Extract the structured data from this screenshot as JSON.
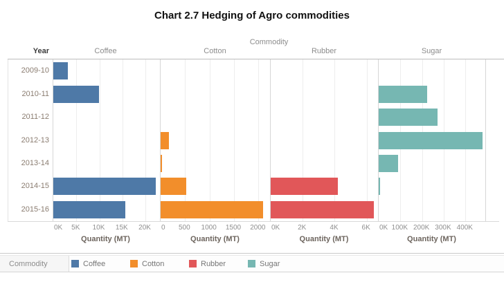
{
  "chart_data": {
    "type": "bar",
    "orientation": "horizontal",
    "title": "Chart 2.7 Hedging of Agro commodities",
    "column_dimension": "Commodity",
    "row_dimension": "Year",
    "xlabel": "Quantity (MT)",
    "years": [
      "2009-10",
      "2010-11",
      "2011-12",
      "2012-13",
      "2013-14",
      "2014-15",
      "2015-16"
    ],
    "grid": true,
    "panels": [
      {
        "name": "Coffee",
        "color": "#4e79a7",
        "axis_max": 23000,
        "ticks": [
          {
            "label": "0K",
            "value": 0
          },
          {
            "label": "5K",
            "value": 5000
          },
          {
            "label": "10K",
            "value": 10000
          },
          {
            "label": "15K",
            "value": 15000
          },
          {
            "label": "20K",
            "value": 20000
          }
        ],
        "values": [
          3200,
          9900,
          0,
          0,
          0,
          22300,
          15700
        ]
      },
      {
        "name": "Cotton",
        "color": "#f28e2b",
        "axis_max": 2250,
        "ticks": [
          {
            "label": "0",
            "value": 0
          },
          {
            "label": "500",
            "value": 500
          },
          {
            "label": "1000",
            "value": 1000
          },
          {
            "label": "1500",
            "value": 1500
          },
          {
            "label": "2000",
            "value": 2000
          }
        ],
        "values": [
          0,
          0,
          0,
          175,
          30,
          520,
          2100
        ]
      },
      {
        "name": "Rubber",
        "color": "#e15759",
        "axis_max": 6750,
        "ticks": [
          {
            "label": "0K",
            "value": 0
          },
          {
            "label": "2K",
            "value": 2000
          },
          {
            "label": "4K",
            "value": 4000
          },
          {
            "label": "6K",
            "value": 6000
          }
        ],
        "values": [
          0,
          0,
          0,
          0,
          0,
          4200,
          6450
        ]
      },
      {
        "name": "Sugar",
        "color": "#76b7b2",
        "axis_max": 495000,
        "ticks": [
          {
            "label": "0K",
            "value": 0
          },
          {
            "label": "100K",
            "value": 100000
          },
          {
            "label": "200K",
            "value": 200000
          },
          {
            "label": "300K",
            "value": 300000
          },
          {
            "label": "400K",
            "value": 400000
          }
        ],
        "values": [
          0,
          225000,
          270000,
          480000,
          90000,
          5000,
          0
        ]
      }
    ],
    "legend": {
      "title": "Commodity",
      "items": [
        {
          "label": "Coffee",
          "color": "#4e79a7"
        },
        {
          "label": "Cotton",
          "color": "#f28e2b"
        },
        {
          "label": "Rubber",
          "color": "#e15759"
        },
        {
          "label": "Sugar",
          "color": "#76b7b2"
        }
      ]
    }
  }
}
